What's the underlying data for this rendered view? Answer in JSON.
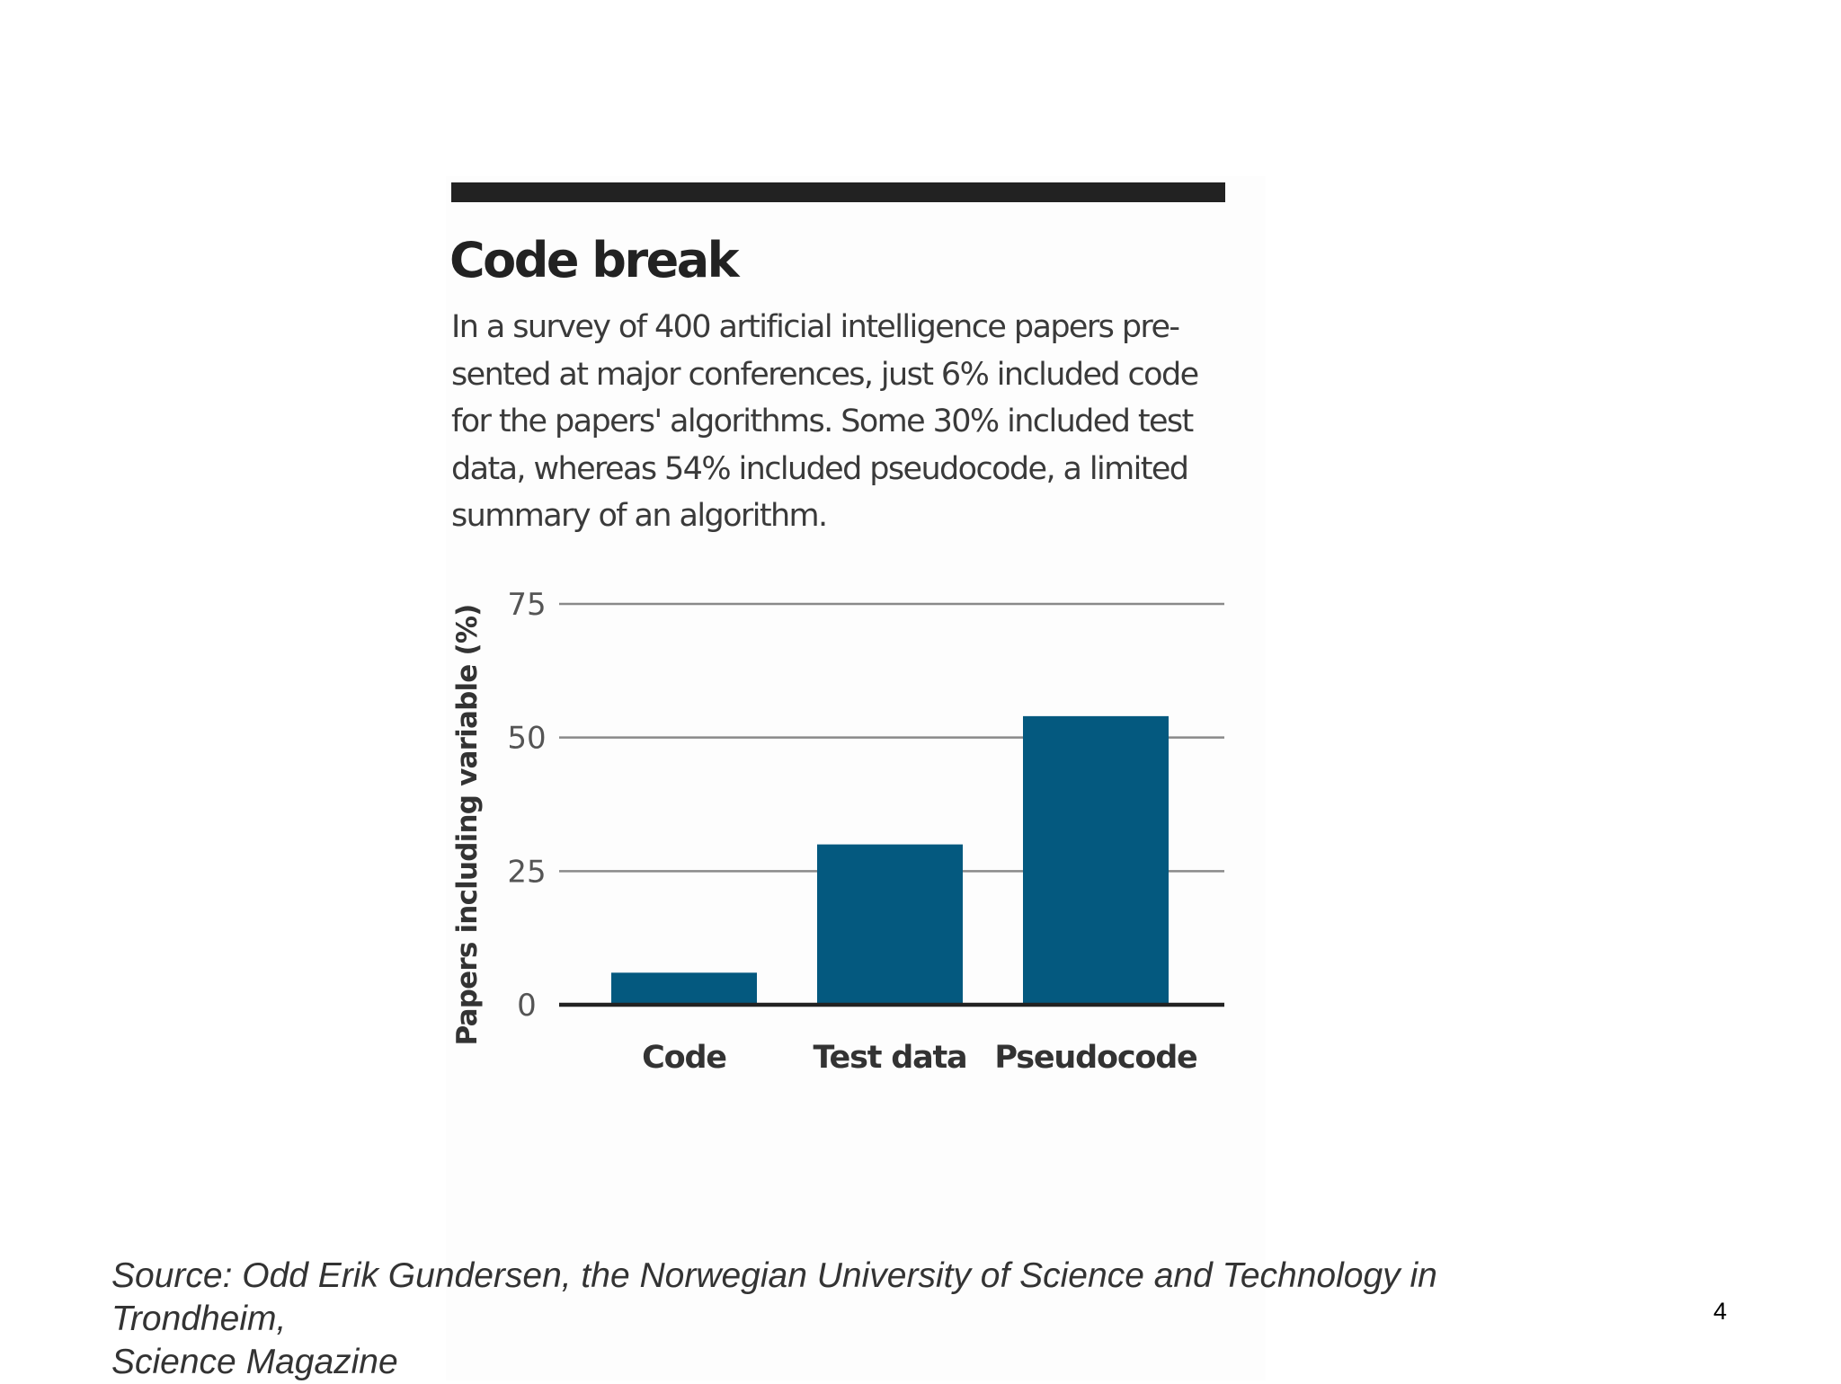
{
  "chart_data": {
    "type": "bar",
    "title": "Code break",
    "subtitle": "In a survey of 400 artificial intelligence papers pre-sented at major conferences, just 6% included code for the papers' algorithms. Some 30% included test data, whereas 54% included pseudocode, a limited summary of an algorithm.",
    "categories": [
      "Code",
      "Test data",
      "Pseudocode"
    ],
    "values": [
      6,
      30,
      54
    ],
    "ylabel": "Papers including variable (%)",
    "xlabel": "",
    "ylim": [
      0,
      75
    ],
    "yticks": [
      0,
      25,
      50,
      75
    ],
    "ytick_labels": [
      "0",
      "25",
      "50",
      "75"
    ],
    "grid": true,
    "bar_color": "#04597f",
    "grid_color": "#8a8a8a",
    "axis_color": "#222222"
  },
  "source": {
    "line1": "Source: Odd Erik Gundersen, the Norwegian University of Science and Technology in",
    "line2": "Trondheim,",
    "line3": "Science Magazine"
  },
  "page_number": "4"
}
